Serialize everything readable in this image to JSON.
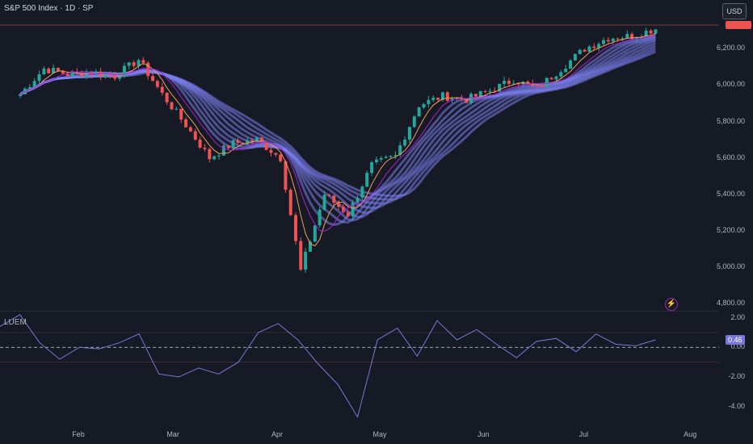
{
  "header": {
    "title": "S&P 500 Index · 1D · SP",
    "currency_button": "USD",
    "indicator_label": "LUEM"
  },
  "colors": {
    "up": "#26a69a",
    "down": "#ef5350",
    "ribbon": "#7b7ff0",
    "fast_ma": "#ab1fd6",
    "slow_ma": "#f39c5a",
    "osc": "#7a77d6",
    "bg": "#161a25"
  },
  "chart_data": [
    {
      "type": "candlestick",
      "title": "S&P 500 Index · 1D · SP",
      "x_tick_labels": [
        "Feb",
        "Mar",
        "Apr",
        "May",
        "Jun",
        "Jul",
        "Aug"
      ],
      "y_tick_labels": [
        "6,200.00",
        "6,000.00",
        "5,800.00",
        "5,600.00",
        "5,400.00",
        "5,200.00",
        "5,000.00",
        "4,800.00"
      ],
      "ylim": [
        4760,
        6370
      ],
      "last_price_line": 6330,
      "grid": false,
      "closes_approx": [
        {
          "date": "2025-01-15",
          "close": 5950
        },
        {
          "date": "2025-01-22",
          "close": 6090
        },
        {
          "date": "2025-01-29",
          "close": 6060
        },
        {
          "date": "2025-02-05",
          "close": 6070
        },
        {
          "date": "2025-02-12",
          "close": 6050
        },
        {
          "date": "2025-02-19",
          "close": 6140
        },
        {
          "date": "2025-02-26",
          "close": 5950
        },
        {
          "date": "2025-03-05",
          "close": 5780
        },
        {
          "date": "2025-03-12",
          "close": 5600
        },
        {
          "date": "2025-03-19",
          "close": 5680
        },
        {
          "date": "2025-03-26",
          "close": 5700
        },
        {
          "date": "2025-04-02",
          "close": 5600
        },
        {
          "date": "2025-04-08",
          "close": 4980
        },
        {
          "date": "2025-04-15",
          "close": 5400
        },
        {
          "date": "2025-04-22",
          "close": 5290
        },
        {
          "date": "2025-04-29",
          "close": 5560
        },
        {
          "date": "2025-05-06",
          "close": 5610
        },
        {
          "date": "2025-05-13",
          "close": 5890
        },
        {
          "date": "2025-05-20",
          "close": 5940
        },
        {
          "date": "2025-05-27",
          "close": 5920
        },
        {
          "date": "2025-06-03",
          "close": 5970
        },
        {
          "date": "2025-06-10",
          "close": 6030
        },
        {
          "date": "2025-06-17",
          "close": 5980
        },
        {
          "date": "2025-06-24",
          "close": 6090
        },
        {
          "date": "2025-07-01",
          "close": 6200
        },
        {
          "date": "2025-07-08",
          "close": 6260
        },
        {
          "date": "2025-07-15",
          "close": 6270
        },
        {
          "date": "2025-07-22",
          "close": 6310
        }
      ]
    },
    {
      "type": "line",
      "title": "LUEM",
      "y_tick_labels": [
        "2.00",
        "0.00",
        "-2.00",
        "-4.00"
      ],
      "ylim": [
        -5.0,
        2.3
      ],
      "current_value_label": "0.46",
      "zero_line": true,
      "values_approx": [
        1.4,
        2.2,
        0.3,
        -0.8,
        0.0,
        -0.1,
        0.3,
        0.9,
        -1.8,
        -2.0,
        -1.4,
        -1.8,
        -1.0,
        1.0,
        1.6,
        0.5,
        -1.1,
        -2.5,
        -4.7,
        0.5,
        1.3,
        -0.6,
        1.8,
        0.5,
        1.2,
        0.2,
        -0.7,
        0.4,
        0.6,
        -0.3,
        0.9,
        0.2,
        0.1,
        0.5
      ]
    }
  ]
}
